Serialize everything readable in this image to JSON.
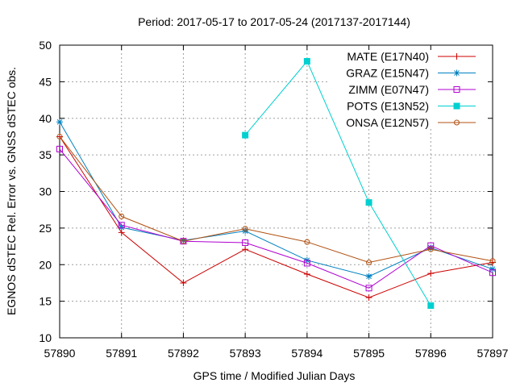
{
  "chart_data": {
    "type": "line",
    "title": "Period: 2017-05-17 to 2017-05-24 (2017137-2017144)",
    "xlabel": "GPS time / Modified Julian Days",
    "ylabel": "EGNOS dSTEC Rel. Error vs. GNSS dSTEC obs.",
    "xlim": [
      57890,
      57897
    ],
    "ylim": [
      10,
      50
    ],
    "xticks": [
      57890,
      57891,
      57892,
      57893,
      57894,
      57895,
      57896,
      57897
    ],
    "yticks": [
      10,
      15,
      20,
      25,
      30,
      35,
      40,
      45,
      50
    ],
    "grid": true,
    "legend_position": "top-right",
    "series": [
      {
        "name": "MATE (E17N40)",
        "color": "#cc0000",
        "marker": "plus",
        "x": [
          57890,
          57891,
          57892,
          57893,
          57894,
          57895,
          57896,
          57897
        ],
        "y": [
          37.5,
          24.4,
          17.5,
          22.1,
          18.7,
          15.5,
          18.8,
          20.3
        ]
      },
      {
        "name": "GRAZ (E15N47)",
        "color": "#0080c0",
        "marker": "star",
        "x": [
          57890,
          57891,
          57892,
          57893,
          57894,
          57895,
          57896,
          57897
        ],
        "y": [
          39.5,
          25.1,
          23.3,
          24.6,
          20.6,
          18.4,
          22.3,
          19.4
        ]
      },
      {
        "name": "ZIMM (E07N47)",
        "color": "#b000d0",
        "marker": "square",
        "x": [
          57890,
          57891,
          57892,
          57893,
          57894,
          57895,
          57896,
          57897
        ],
        "y": [
          35.8,
          25.4,
          23.2,
          23.0,
          20.2,
          16.8,
          22.6,
          18.9
        ]
      },
      {
        "name": "POTS (E13N52)",
        "color": "#00d0d0",
        "marker": "filled-square",
        "x": [
          57893,
          57894,
          57895,
          57896
        ],
        "y": [
          37.7,
          47.8,
          28.5,
          14.4
        ]
      },
      {
        "name": "ONSA (E12N57)",
        "color": "#b05010",
        "marker": "circle",
        "x": [
          57890,
          57891,
          57892,
          57893,
          57894,
          57895,
          57896,
          57897
        ],
        "y": [
          37.5,
          26.6,
          23.2,
          24.9,
          23.1,
          20.3,
          22.1,
          20.5
        ]
      }
    ]
  }
}
